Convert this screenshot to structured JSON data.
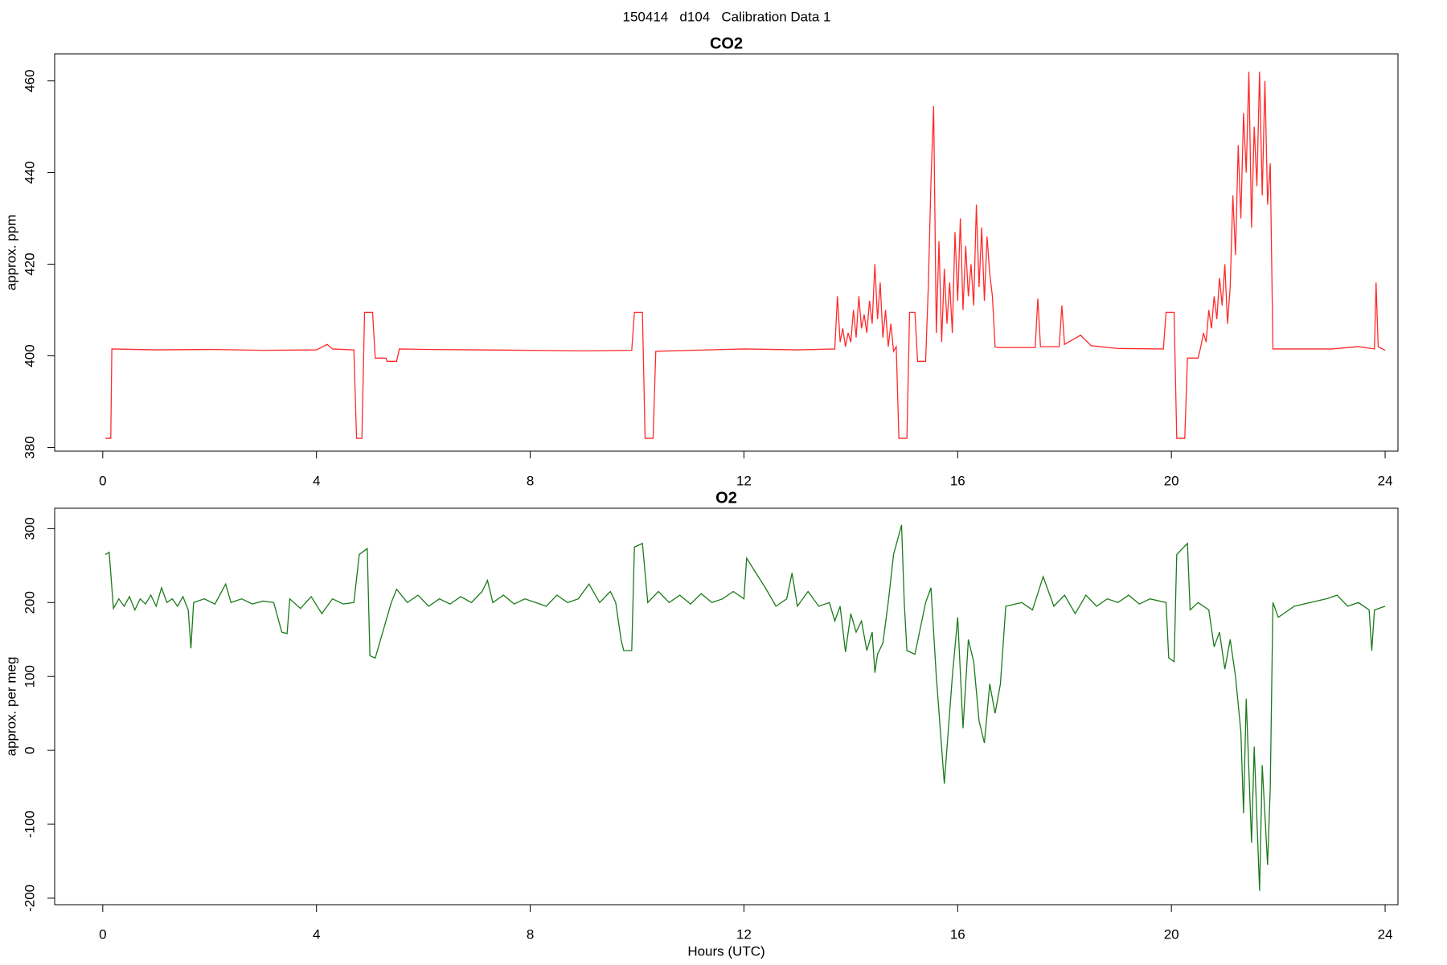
{
  "title": "150414   d104   Calibration Data 1",
  "chart_data": [
    {
      "type": "line",
      "title": "CO2",
      "ylabel": "approx. ppm",
      "xlim": [
        -0.9,
        24.24
      ],
      "xticks": [
        0,
        4,
        8,
        12,
        16,
        20,
        24
      ],
      "ylim": [
        379.2,
        465.9
      ],
      "yticks": [
        380,
        400,
        420,
        440,
        460
      ],
      "series": [
        {
          "name": "CO2",
          "color": "#ff2a2a",
          "x": [
            0.05,
            0.15,
            0.17,
            1,
            2,
            3,
            4,
            4.2,
            4.3,
            4.7,
            4.75,
            4.85,
            4.9,
            5.05,
            5.1,
            5.3,
            5.32,
            5.5,
            5.55,
            6,
            7,
            8,
            9,
            9.9,
            9.95,
            10.1,
            10.15,
            10.3,
            10.35,
            11,
            12,
            13,
            13.7,
            13.75,
            13.8,
            13.85,
            13.9,
            13.95,
            14.0,
            14.05,
            14.1,
            14.15,
            14.2,
            14.25,
            14.3,
            14.35,
            14.4,
            14.45,
            14.5,
            14.55,
            14.6,
            14.65,
            14.7,
            14.75,
            14.8,
            14.85,
            14.9,
            15.05,
            15.1,
            15.2,
            15.25,
            15.4,
            15.45,
            15.5,
            15.55,
            15.6,
            15.65,
            15.7,
            15.75,
            15.8,
            15.85,
            15.9,
            15.95,
            16.0,
            16.05,
            16.1,
            16.15,
            16.2,
            16.25,
            16.3,
            16.35,
            16.4,
            16.45,
            16.5,
            16.55,
            16.6,
            16.65,
            16.7,
            16.75,
            17.45,
            17.5,
            17.55,
            17.9,
            17.95,
            18.0,
            18.3,
            18.5,
            19,
            19.85,
            19.9,
            20.05,
            20.1,
            20.25,
            20.3,
            20.5,
            20.55,
            20.6,
            20.65,
            20.7,
            20.75,
            20.8,
            20.85,
            20.9,
            20.95,
            21.0,
            21.05,
            21.1,
            21.15,
            21.2,
            21.25,
            21.3,
            21.35,
            21.4,
            21.45,
            21.5,
            21.55,
            21.6,
            21.65,
            21.7,
            21.75,
            21.8,
            21.85,
            21.9,
            23,
            23.5,
            23.8,
            23.83,
            23.87,
            24.0
          ],
          "values": [
            382,
            382,
            401.5,
            401.3,
            401.4,
            401.2,
            401.3,
            402.5,
            401.5,
            401.3,
            382,
            382,
            409.5,
            409.5,
            399.5,
            399.5,
            398.8,
            398.8,
            401.5,
            401.4,
            401.3,
            401.2,
            401.1,
            401.2,
            409.5,
            409.5,
            382,
            382,
            401,
            401.2,
            401.5,
            401.3,
            401.5,
            413,
            403,
            406,
            402,
            405,
            403,
            410,
            404,
            413,
            406,
            409,
            405,
            412,
            407,
            420,
            408,
            416,
            404,
            410,
            402,
            407,
            401,
            402,
            382,
            382,
            409.5,
            409.5,
            398.8,
            398.8,
            415,
            438,
            454.5,
            405,
            425,
            403,
            419,
            407,
            416,
            405,
            427,
            412,
            430,
            410,
            424,
            413,
            420,
            411,
            433,
            415,
            428,
            412,
            426,
            418,
            413,
            402,
            401.8,
            401.8,
            412.5,
            402,
            402,
            411,
            402.5,
            404.5,
            402.2,
            401.6,
            401.5,
            409.5,
            409.5,
            382,
            382,
            399.5,
            399.5,
            402,
            405,
            403,
            410,
            406,
            413,
            408,
            417,
            411,
            420,
            407,
            415,
            435,
            422,
            446,
            430,
            453,
            440,
            462,
            428,
            450,
            437,
            462,
            435,
            460,
            433,
            442,
            401.5,
            401.5,
            402,
            401.5,
            416,
            402,
            401.2
          ]
        }
      ]
    },
    {
      "type": "line",
      "title": "O2",
      "ylabel": "approx. per meg",
      "xlabel": "Hours (UTC)",
      "xlim": [
        -0.9,
        24.24
      ],
      "xticks": [
        0,
        4,
        8,
        12,
        16,
        20,
        24
      ],
      "ylim": [
        -208.8,
        327.6
      ],
      "yticks": [
        -200,
        -100,
        0,
        100,
        200,
        300
      ],
      "series": [
        {
          "name": "O2",
          "color": "#1a7a1a",
          "x": [
            0.05,
            0.12,
            0.2,
            0.3,
            0.4,
            0.5,
            0.6,
            0.7,
            0.8,
            0.9,
            1.0,
            1.1,
            1.2,
            1.3,
            1.4,
            1.5,
            1.6,
            1.65,
            1.7,
            1.9,
            2.1,
            2.3,
            2.4,
            2.6,
            2.8,
            3.0,
            3.2,
            3.35,
            3.45,
            3.5,
            3.7,
            3.9,
            4.1,
            4.3,
            4.5,
            4.7,
            4.8,
            4.95,
            5.0,
            5.1,
            5.2,
            5.4,
            5.5,
            5.7,
            5.9,
            6.1,
            6.3,
            6.5,
            6.7,
            6.9,
            7.1,
            7.2,
            7.3,
            7.5,
            7.7,
            7.9,
            8.1,
            8.3,
            8.5,
            8.7,
            8.9,
            9.1,
            9.3,
            9.5,
            9.6,
            9.7,
            9.75,
            9.9,
            9.95,
            10.1,
            10.2,
            10.4,
            10.6,
            10.8,
            11.0,
            11.2,
            11.4,
            11.6,
            11.8,
            12.0,
            12.05,
            12.4,
            12.6,
            12.8,
            12.9,
            13.0,
            13.2,
            13.4,
            13.6,
            13.7,
            13.8,
            13.9,
            14.0,
            14.1,
            14.2,
            14.3,
            14.4,
            14.45,
            14.5,
            14.6,
            14.7,
            14.8,
            14.95,
            15.0,
            15.05,
            15.2,
            15.4,
            15.5,
            15.6,
            15.75,
            15.9,
            16.0,
            16.1,
            16.2,
            16.3,
            16.4,
            16.5,
            16.6,
            16.7,
            16.8,
            16.9,
            17.2,
            17.4,
            17.6,
            17.8,
            18.0,
            18.2,
            18.4,
            18.6,
            18.8,
            19.0,
            19.2,
            19.4,
            19.6,
            19.9,
            19.95,
            20.05,
            20.1,
            20.3,
            20.35,
            20.5,
            20.7,
            20.8,
            20.9,
            21.0,
            21.1,
            21.2,
            21.3,
            21.35,
            21.4,
            21.5,
            21.55,
            21.65,
            21.7,
            21.8,
            21.85,
            21.9,
            22.0,
            22.3,
            22.6,
            22.9,
            23.1,
            23.3,
            23.5,
            23.7,
            23.75,
            23.8,
            24.0
          ],
          "values": [
            265,
            268,
            192,
            205,
            195,
            208,
            190,
            205,
            198,
            210,
            195,
            220,
            200,
            205,
            195,
            208,
            190,
            138,
            200,
            205,
            198,
            225,
            200,
            205,
            198,
            202,
            200,
            160,
            158,
            205,
            192,
            208,
            185,
            205,
            198,
            200,
            265,
            273,
            128,
            125,
            150,
            200,
            218,
            200,
            210,
            195,
            205,
            198,
            208,
            200,
            215,
            230,
            200,
            210,
            198,
            205,
            200,
            195,
            210,
            200,
            205,
            225,
            200,
            215,
            200,
            150,
            135,
            135,
            275,
            280,
            200,
            215,
            200,
            210,
            198,
            212,
            200,
            205,
            215,
            205,
            260,
            220,
            195,
            205,
            240,
            195,
            215,
            195,
            200,
            175,
            195,
            133,
            185,
            160,
            175,
            135,
            160,
            105,
            130,
            145,
            200,
            265,
            305,
            200,
            135,
            130,
            200,
            220,
            100,
            -45,
            100,
            180,
            30,
            150,
            120,
            40,
            10,
            90,
            50,
            90,
            195,
            200,
            190,
            235,
            195,
            210,
            185,
            210,
            195,
            205,
            200,
            210,
            198,
            205,
            200,
            125,
            120,
            265,
            280,
            190,
            200,
            190,
            140,
            160,
            110,
            150,
            100,
            25,
            -85,
            70,
            -125,
            5,
            -190,
            -20,
            -155,
            -50,
            200,
            180,
            195,
            200,
            205,
            210,
            195,
            200,
            190,
            135,
            190,
            195
          ]
        }
      ]
    }
  ]
}
